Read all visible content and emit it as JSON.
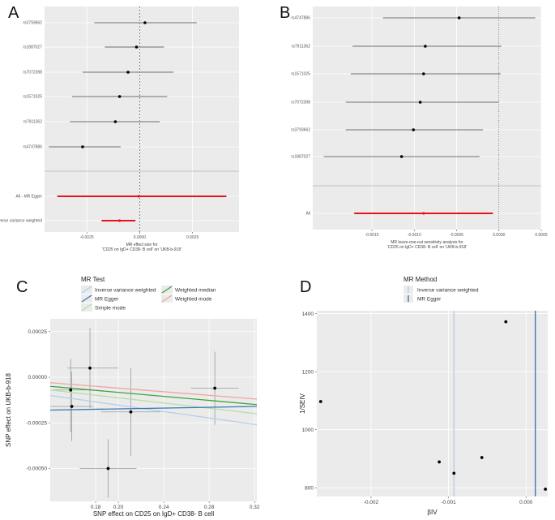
{
  "panels": {
    "a": {
      "letter": "A"
    },
    "b": {
      "letter": "B"
    },
    "c": {
      "letter": "C"
    },
    "d": {
      "letter": "D"
    }
  },
  "chart_data": [
    {
      "id": "A",
      "type": "forest",
      "xlabel": "MR effect size for\n'CD25 on IgD+ CD38- B cell' on 'UKB-b-918'",
      "xlim": [
        -0.0045,
        0.0047
      ],
      "xticks": [
        -0.0025,
        0.0,
        0.0025
      ],
      "xtick_labels": [
        "-0.0025",
        "0.0000",
        "0.0025"
      ],
      "rows": [
        {
          "label": "rs3793662",
          "est": 0.00025,
          "lo": -0.00215,
          "hi": 0.0027,
          "color": "#000000"
        },
        {
          "label": "rs1887027",
          "est": -0.00015,
          "lo": -0.00165,
          "hi": 0.00115,
          "color": "#000000"
        },
        {
          "label": "rs7072398",
          "est": -0.00055,
          "lo": -0.0027,
          "hi": 0.0016,
          "color": "#000000"
        },
        {
          "label": "rs1571025",
          "est": -0.00095,
          "lo": -0.0032,
          "hi": 0.0013,
          "color": "#000000"
        },
        {
          "label": "rs7911362",
          "est": -0.00115,
          "lo": -0.0033,
          "hi": 0.00095,
          "color": "#000000"
        },
        {
          "label": "rs4747886",
          "est": -0.0027,
          "lo": -0.0043,
          "hi": -0.0009,
          "color": "#000000"
        },
        {
          "label": "All - MR Egger",
          "est": -5e-05,
          "lo": -0.0039,
          "hi": 0.0041,
          "color": "#e8141c"
        },
        {
          "label": "All - Inverse variance weighted",
          "est": -0.00095,
          "lo": -0.0018,
          "hi": -0.0002,
          "color": "#e8141c"
        }
      ]
    },
    {
      "id": "B",
      "type": "forest",
      "xlabel": "MR leave-one-out sensitivity analysis for\n'CD25 on IgD+ CD38- B cell' on 'UKB-b-918'",
      "xlim": [
        -0.0022,
        0.0005
      ],
      "xticks": [
        -0.0015,
        -0.001,
        -0.0005,
        0.0,
        0.0005
      ],
      "xtick_labels": [
        "-0.0015",
        "-0.0010",
        "-0.0005",
        "0.0000",
        "0.0005"
      ],
      "rows": [
        {
          "label": "rs4747886",
          "est": -0.00047,
          "lo": -0.00137,
          "hi": 0.00043,
          "color": "#000000"
        },
        {
          "label": "rs7911362",
          "est": -0.00087,
          "lo": -0.00173,
          "hi": 3e-05,
          "color": "#000000"
        },
        {
          "label": "rs1571025",
          "est": -0.00089,
          "lo": -0.00175,
          "hi": 2e-05,
          "color": "#000000"
        },
        {
          "label": "rs7072398",
          "est": -0.00093,
          "lo": -0.00181,
          "hi": 0.0,
          "color": "#000000"
        },
        {
          "label": "rs3793662",
          "est": -0.00101,
          "lo": -0.00181,
          "hi": -0.00019,
          "color": "#000000"
        },
        {
          "label": "rs1887027",
          "est": -0.00115,
          "lo": -0.00207,
          "hi": -0.00023,
          "color": "#000000"
        },
        {
          "label": "All",
          "est": -0.00089,
          "lo": -0.00171,
          "hi": -7e-05,
          "color": "#e8141c"
        }
      ]
    },
    {
      "id": "C",
      "type": "scatter",
      "xlabel": "SNP effect on CD25 on IgD+ CD38- B cell",
      "ylabel": "SNP effect on UKB-b-918",
      "xlim": [
        0.14,
        0.322
      ],
      "ylim": [
        -0.00068,
        0.00032
      ],
      "xticks": [
        0.18,
        0.2,
        0.24,
        0.28,
        0.32
      ],
      "xtick_labels": [
        "0.18",
        "0.20",
        "0.24",
        "0.28",
        "0.32"
      ],
      "yticks": [
        0.00025,
        0.0,
        -0.00025,
        -0.0005
      ],
      "ytick_labels": [
        "0.00025",
        "0.00000",
        "-0.00025",
        "-0.00050"
      ],
      "legend_title": "MR Test",
      "legend": [
        {
          "name": "Inverse variance weighted",
          "color": "#b9cde6"
        },
        {
          "name": "Weighted median",
          "color": "#3aa53a"
        },
        {
          "name": "MR Egger",
          "color": "#3a78b8"
        },
        {
          "name": "Weighted mode",
          "color": "#f4a3a3"
        },
        {
          "name": "Simple mode",
          "color": "#b5dfa8"
        }
      ],
      "points": [
        {
          "x": 0.175,
          "y": 5e-05,
          "xlo": 0.155,
          "xhi": 0.2,
          "ylo": -0.00017,
          "yhi": 0.00027
        },
        {
          "x": 0.158,
          "y": -7e-05,
          "xlo": 0.142,
          "xhi": 0.174,
          "ylo": -0.0003,
          "yhi": 0.0001
        },
        {
          "x": 0.159,
          "y": -0.00016,
          "xlo": 0.14,
          "xhi": 0.178,
          "ylo": -0.00035,
          "yhi": 3e-05
        },
        {
          "x": 0.211,
          "y": -0.00019,
          "xlo": 0.185,
          "xhi": 0.237,
          "ylo": -0.00043,
          "yhi": 5e-05
        },
        {
          "x": 0.191,
          "y": -0.0005,
          "xlo": 0.166,
          "xhi": 0.216,
          "ylo": -0.00066,
          "yhi": -0.00034
        },
        {
          "x": 0.285,
          "y": -6e-05,
          "xlo": 0.264,
          "xhi": 0.306,
          "ylo": -0.00026,
          "yhi": 0.00014
        }
      ],
      "lines": [
        {
          "name": "Weighted mode",
          "color": "#f4a3a3",
          "x0": 0.14,
          "y0": -3e-05,
          "x1": 0.322,
          "y1": -0.00012
        },
        {
          "name": "Weighted median",
          "color": "#3aa53a",
          "x0": 0.14,
          "y0": -5e-05,
          "x1": 0.322,
          "y1": -0.00015
        },
        {
          "name": "Simple mode",
          "color": "#b5dfa8",
          "x0": 0.14,
          "y0": -7e-05,
          "x1": 0.322,
          "y1": -0.0002
        },
        {
          "name": "Inverse variance weighted",
          "color": "#b9cde6",
          "x0": 0.14,
          "y0": -0.0001,
          "x1": 0.322,
          "y1": -0.00026
        },
        {
          "name": "MR Egger",
          "color": "#3a78b8",
          "x0": 0.14,
          "y0": -0.00018,
          "x1": 0.322,
          "y1": -0.00016
        }
      ]
    },
    {
      "id": "D",
      "type": "funnel",
      "xlabel": "βIV",
      "ylabel": "1/SEIV",
      "xlim": [
        -0.0027,
        0.00028
      ],
      "ylim": [
        770,
        1410
      ],
      "xticks": [
        -0.002,
        -0.001,
        0.0
      ],
      "xtick_labels": [
        "-0.002",
        "-0.001",
        "0.000"
      ],
      "yticks": [
        800,
        1000,
        1200,
        1400
      ],
      "ytick_labels": [
        "800",
        "1000",
        "1200",
        "1400"
      ],
      "legend_title": "MR Method",
      "legend": [
        {
          "name": "Inverse variance weighted",
          "color": "#b9cde6"
        },
        {
          "name": "MR Egger",
          "color": "#3a78b8"
        }
      ],
      "points": [
        {
          "x": -0.00265,
          "y": 1097
        },
        {
          "x": -0.00026,
          "y": 1372
        },
        {
          "x": -0.00112,
          "y": 889
        },
        {
          "x": -0.00057,
          "y": 904
        },
        {
          "x": -0.00093,
          "y": 850
        },
        {
          "x": 0.00025,
          "y": 795
        }
      ],
      "vlines": [
        {
          "name": "Inverse variance weighted",
          "x": -0.00093,
          "color": "#b9cde6"
        },
        {
          "name": "MR Egger",
          "x": 0.00012,
          "color": "#3a78b8"
        }
      ]
    }
  ]
}
